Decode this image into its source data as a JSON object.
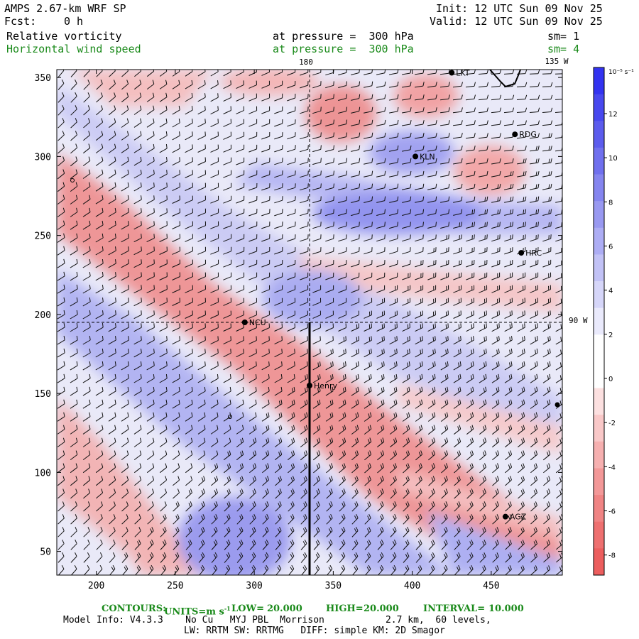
{
  "header": {
    "model": "AMPS 2.67-km WRF SP",
    "fcst_label": "Fcst:",
    "fcst_value": "0 h",
    "init": "Init: 12 UTC Sun 09 Nov 25",
    "valid": "Valid: 12 UTC Sun 09 Nov 25",
    "field1": "Relative vorticity",
    "field1_level": "at pressure =  300 hPa",
    "field1_sm": "sm= 1",
    "field2": "Horizontal wind speed",
    "field2_level": "at pressure =  300 hPa",
    "field2_sm": "sm= 4"
  },
  "map_labels": {
    "lon_180": "180",
    "lon_135w": "135 W",
    "lat_90w": "90 W"
  },
  "stations": [
    {
      "name": "LKT",
      "x": 425,
      "y": 353
    },
    {
      "name": "RDG",
      "x": 465,
      "y": 314
    },
    {
      "name": "KLN",
      "x": 402,
      "y": 300
    },
    {
      "name": "HRC",
      "x": 469,
      "y": 239
    },
    {
      "name": "NCU",
      "x": 294,
      "y": 195
    },
    {
      "name": "Henry",
      "x": 335,
      "y": 155
    },
    {
      "name": "AGZ",
      "x": 459,
      "y": 72
    }
  ],
  "colorbar": {
    "unit": "10⁻⁵ s⁻¹",
    "ticks": [
      "12",
      "10",
      "8",
      "6",
      "4",
      "2",
      "0",
      "-2",
      "-4",
      "-6",
      "-8"
    ],
    "colors": [
      "#3333f0",
      "#4848ee",
      "#5c5ced",
      "#7070ee",
      "#8585ef",
      "#9999f1",
      "#adadf4",
      "#c2c2f6",
      "#d6d6f9",
      "#eaeafc",
      "#ffffff",
      "#ffffff",
      "#fce0e0",
      "#f9c8c8",
      "#f6b0b0",
      "#f39898",
      "#f08484",
      "#ee7070",
      "#ec5e5e"
    ]
  },
  "chart_data": {
    "type": "heatmap",
    "title": "Relative vorticity at pressure = 300 hPa, Horizontal wind speed at pressure = 300 hPa",
    "xlim": [
      175,
      495
    ],
    "ylim": [
      35,
      355
    ],
    "xticks": [
      "200",
      "250",
      "300",
      "350",
      "400",
      "450"
    ],
    "yticks": [
      "50",
      "100",
      "150",
      "200",
      "250",
      "300",
      "350"
    ],
    "xtick_values": [
      200,
      250,
      300,
      350,
      400,
      450
    ],
    "ytick_values": [
      50,
      100,
      150,
      200,
      250,
      300,
      350
    ],
    "cross_section_line": {
      "x": [
        335,
        335
      ],
      "y": [
        35,
        195
      ]
    },
    "crosshair": {
      "x": 335,
      "y": 195
    },
    "contours": {
      "units": "m s⁻¹",
      "low": 20.0,
      "high": 20.0,
      "interval": 10.0
    }
  },
  "footer": {
    "contours_label": "CONTOURS:",
    "units_label": "UNITS=m s",
    "units_sup": "-1",
    "low_label": "LOW=",
    "low_value": "20.000",
    "high_label": "HIGH=",
    "high_value": "20.000",
    "interval_label": "INTERVAL=",
    "interval_value": "10.000",
    "model_info": "Model Info: V4.3.3    No Cu   MYJ PBL  Morrison           2.7 km,  60 levels,",
    "model_info2": "LW: RRTM SW: RRTMG   DIFF: simple KM: 2D Smagor"
  }
}
